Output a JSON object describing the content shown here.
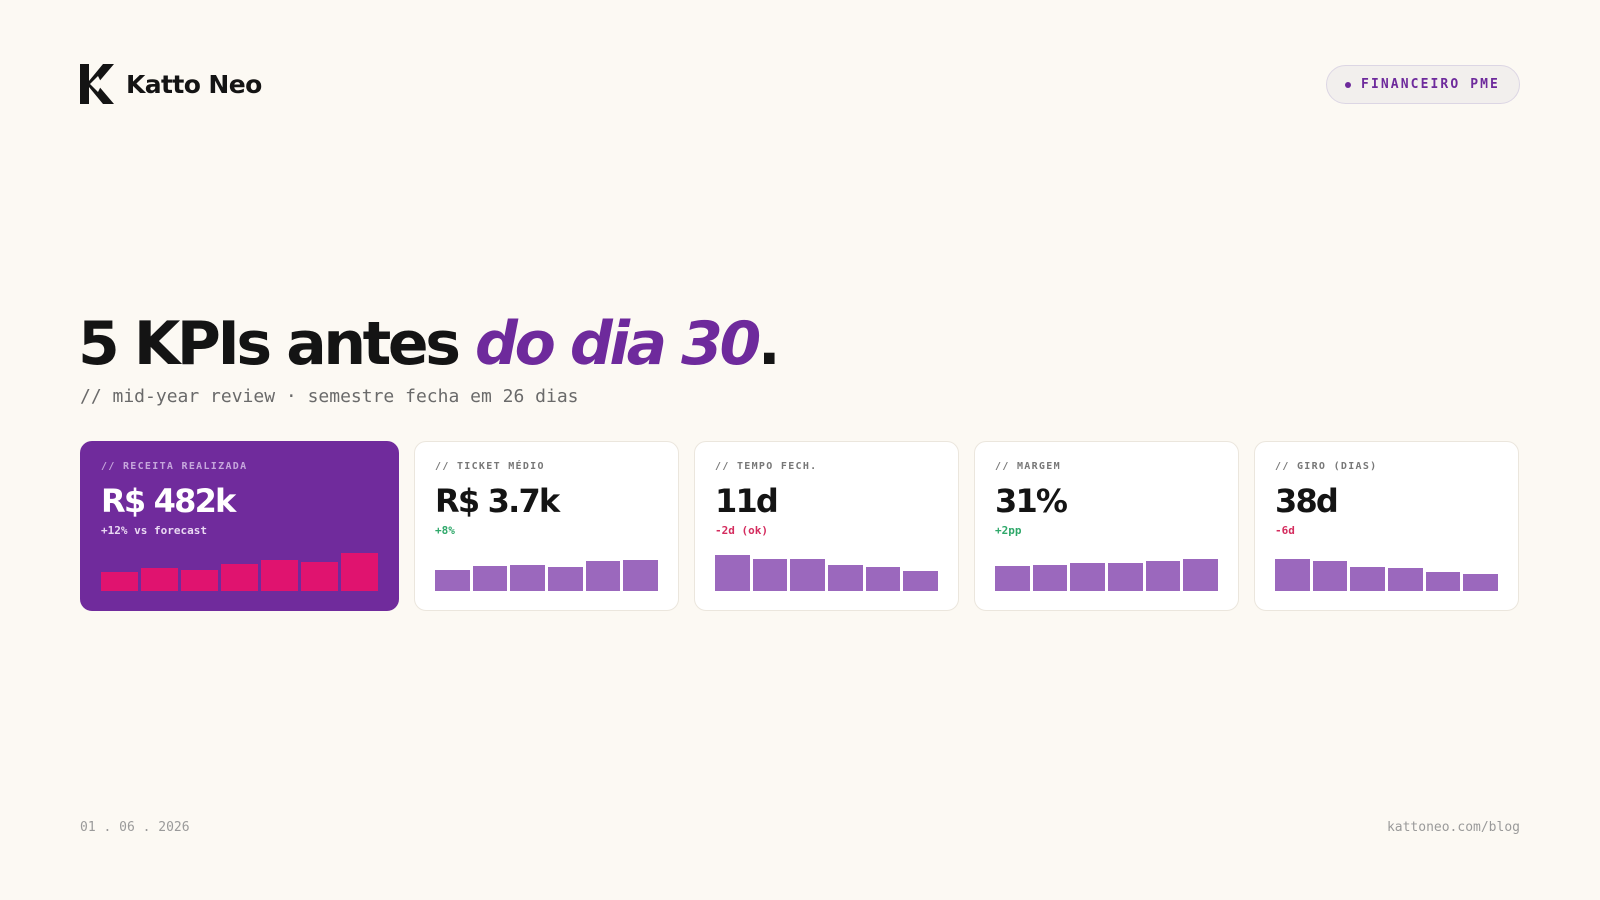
{
  "brand": {
    "name": "Katto Neo",
    "logo_icon": "katto-k-logo-icon",
    "colors": {
      "accent": "#6e2a9c",
      "highlight": "#e0136f",
      "positive": "#2fa86a",
      "negative": "#d42c5e",
      "background": "#fcf9f3"
    }
  },
  "tag": {
    "label": "FINANCEIRO PME"
  },
  "headline": {
    "prefix": "5 KPIs antes ",
    "accent": "do dia 30",
    "suffix": "."
  },
  "subtitle": "// mid-year review · semestre fecha em 26 dias",
  "kpis": [
    {
      "label": "// RECEITA REALIZADA",
      "value": "R$ 482k",
      "delta": "+12% vs forecast",
      "trend": "positive",
      "bars": [
        0.45,
        0.55,
        0.5,
        0.65,
        0.75,
        0.7,
        0.9
      ]
    },
    {
      "label": "// TICKET MÉDIO",
      "value": "R$ 3.7k",
      "delta": "+8%",
      "trend": "positive",
      "bars": [
        0.5,
        0.6,
        0.62,
        0.57,
        0.72,
        0.75
      ]
    },
    {
      "label": "// TEMPO FECH.",
      "value": "11d",
      "delta": "-2d (ok)",
      "trend": "negative",
      "bars": [
        0.85,
        0.76,
        0.76,
        0.62,
        0.57,
        0.48
      ]
    },
    {
      "label": "// MARGEM",
      "value": "31%",
      "delta": "+2pp",
      "trend": "positive",
      "bars": [
        0.6,
        0.62,
        0.67,
        0.67,
        0.71,
        0.76
      ]
    },
    {
      "label": "// GIRO (DIAS)",
      "value": "38d",
      "delta": "-6d",
      "trend": "negative",
      "bars": [
        0.76,
        0.71,
        0.57,
        0.55,
        0.46,
        0.4
      ]
    }
  ],
  "footer": {
    "date": "01 . 06 . 2026",
    "url": "kattoneo.com/blog"
  }
}
